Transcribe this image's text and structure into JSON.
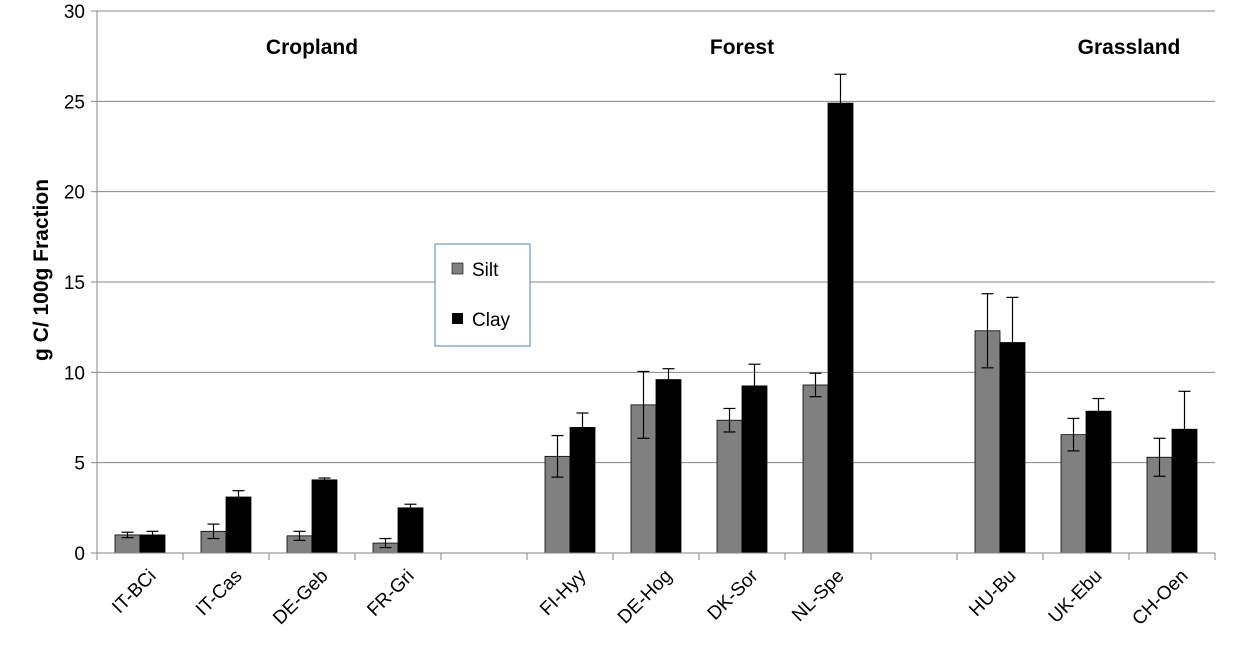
{
  "chart_data": {
    "type": "bar",
    "ylabel": "g C/ 100g Fraction",
    "xlabel": "",
    "ylim": [
      0,
      30
    ],
    "yticks": [
      0,
      5,
      10,
      15,
      20,
      25,
      30
    ],
    "grid": true,
    "legend_position": "center-left",
    "categories": [
      "IT-BCi",
      "IT-Cas",
      "DE-Geb",
      "FR-Gri",
      "",
      "FI-Hyy",
      "DE-Hog",
      "DK-Sor",
      "NL-Spe",
      "",
      "HU-Bu",
      "UK-Ebu",
      "CH-Oen"
    ],
    "group_labels": [
      {
        "text": "Cropland",
        "category_index": 2
      },
      {
        "text": "Forest",
        "category_index": 7
      },
      {
        "text": "Grassland",
        "category_index": 11.5
      }
    ],
    "series": [
      {
        "name": "Silt",
        "color": "#808080",
        "values": [
          1.0,
          1.2,
          0.95,
          0.55,
          null,
          5.35,
          8.2,
          7.35,
          9.3,
          null,
          12.3,
          6.55,
          5.3
        ],
        "errors": [
          0.15,
          0.4,
          0.25,
          0.25,
          null,
          1.15,
          1.85,
          0.65,
          0.65,
          null,
          2.05,
          0.9,
          1.05
        ]
      },
      {
        "name": "Clay",
        "color": "#000000",
        "values": [
          1.0,
          3.1,
          4.05,
          2.5,
          null,
          6.95,
          9.6,
          9.25,
          24.9,
          null,
          11.65,
          7.85,
          6.85
        ],
        "errors": [
          0.2,
          0.35,
          0.1,
          0.2,
          null,
          0.8,
          0.6,
          1.2,
          1.6,
          null,
          2.5,
          0.7,
          2.1
        ]
      }
    ]
  },
  "colors": {
    "grid": "#868686",
    "axis": "#868686",
    "legend_border": "#4f81bd"
  }
}
